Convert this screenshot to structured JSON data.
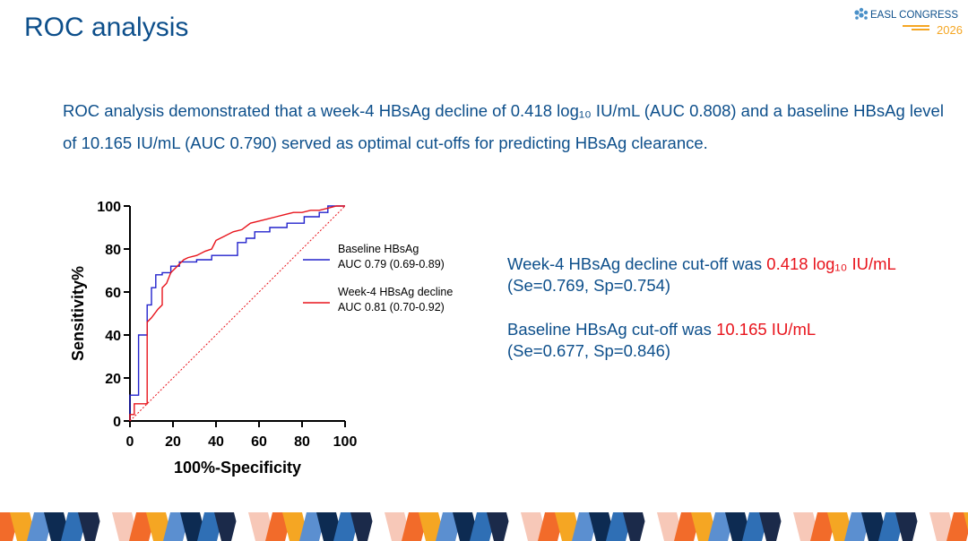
{
  "slide": {
    "title": "ROC analysis",
    "intro_text": "ROC analysis demonstrated that a week-4 HBsAg decline of 0.418 log₁₀ IU/mL (AUC 0.808) and a baseline HBsAg level of 10.165 IU/mL (AUC 0.790) served as optimal cut-offs for predicting HBsAg clearance."
  },
  "logo": {
    "text": "EASL CONGRESS",
    "year": "2026",
    "brand_color": "#0d4f8b",
    "accent_color": "#f5a623"
  },
  "results": {
    "week4_prefix": "Week-4 HBsAg decline cut-off was ",
    "week4_value": "0.418 log₁₀ IU/mL",
    "week4_stats": "(Se=0.769, Sp=0.754)",
    "baseline_prefix": "Baseline HBsAg  cut-off was  ",
    "baseline_value": "10.165 IU/mL",
    "baseline_stats": "(Se=0.677, Sp=0.846)",
    "text_color": "#0d4f8b",
    "highlight_color": "#e8141c"
  },
  "chart_data": {
    "type": "line",
    "xlabel": "100%-Specificity",
    "ylabel": "Sensitivity%",
    "xlim": [
      0,
      100
    ],
    "ylim": [
      0,
      100
    ],
    "xticks": [
      0,
      20,
      40,
      60,
      80,
      100
    ],
    "yticks": [
      0,
      20,
      40,
      60,
      80,
      100
    ],
    "grid": false,
    "legend_position": "right",
    "reference_line": true,
    "series": [
      {
        "name": "Baseline HBsAg",
        "auc_label": "AUC 0.79 (0.69-0.89)",
        "color": "#2222cc",
        "x": [
          0,
          0,
          4,
          4,
          8,
          8,
          10,
          10,
          12,
          12,
          15,
          15,
          19,
          19,
          23,
          23,
          31,
          31,
          38,
          38,
          50,
          50,
          54,
          54,
          58,
          58,
          65,
          65,
          73,
          73,
          81,
          81,
          88,
          88,
          92,
          92,
          100
        ],
        "y": [
          0,
          12,
          12,
          40,
          40,
          54,
          54,
          62,
          62,
          68,
          68,
          69,
          69,
          72,
          72,
          74,
          74,
          75,
          75,
          77,
          77,
          83,
          83,
          85,
          85,
          88,
          88,
          90,
          90,
          92,
          92,
          95,
          95,
          97,
          97,
          100,
          100
        ]
      },
      {
        "name": "Week-4 HBsAg decline",
        "auc_label": "AUC 0.81 (0.70-0.92)",
        "color": "#e8141c",
        "x": [
          0,
          0,
          2,
          2,
          8,
          8,
          10,
          13,
          15,
          15,
          17,
          19,
          21,
          23,
          25,
          27,
          31,
          35,
          38,
          40,
          42,
          44,
          48,
          52,
          56,
          60,
          64,
          68,
          72,
          76,
          80,
          84,
          88,
          92,
          96,
          100
        ],
        "y": [
          0,
          3,
          3,
          8,
          8,
          46,
          48,
          52,
          54,
          62,
          64,
          69,
          71,
          73,
          75,
          76,
          77,
          79,
          80,
          84,
          85,
          86,
          88,
          89,
          92,
          93,
          94,
          95,
          96,
          97,
          97,
          98,
          98,
          99,
          100,
          100
        ]
      }
    ]
  }
}
